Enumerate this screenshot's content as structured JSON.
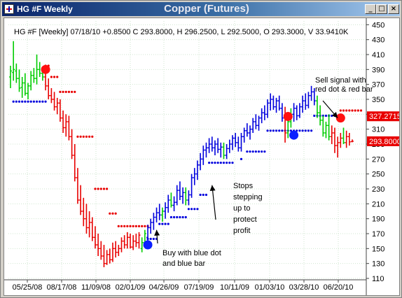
{
  "window": {
    "title": "HG #F Weekly",
    "chart_title": "Copper (Futures)",
    "minimize_label": "_",
    "maximize_label": "□",
    "close_label": "×"
  },
  "info_line": "HG #F [Weekly] 07/18/10 +0.8500 C 293.8000, H 296.2500, L 292.5000, O 293.3000, V 33.9410K",
  "colors": {
    "up": "#00cc00",
    "down": "#e80000",
    "trend_up": "#0000dd",
    "stop_up": "#0000dd",
    "stop_down": "#e80000",
    "price_box": "#e80000"
  },
  "chart_data": {
    "type": "ohlc",
    "title": "Copper (Futures)",
    "y_axis": {
      "side": "right",
      "ylim": [
        110,
        455
      ],
      "ticks": [
        450,
        430,
        410,
        390,
        370,
        350,
        330,
        310,
        290,
        270,
        250,
        230,
        210,
        190,
        170,
        150,
        130,
        110
      ]
    },
    "x_tick_labels": [
      "05/25/08",
      "08/17/08",
      "11/09/08",
      "02/01/09",
      "04/26/09",
      "07/19/09",
      "10/11/09",
      "01/03/10",
      "03/28/10",
      "06/20/10"
    ],
    "price_boxes": [
      {
        "label": "327.2715",
        "value": 327.2715
      },
      {
        "label": "293.8000",
        "value": 293.8
      }
    ],
    "annotations": [
      {
        "text_lines": [
          "Sell signal with",
          "red dot & red bar"
        ],
        "target_x_index": 112,
        "target_value": 325
      },
      {
        "text_lines": [
          "Stops",
          "stepping",
          "up to",
          "protect",
          "profit"
        ],
        "target_x_index": 69,
        "target_value": 235
      },
      {
        "text_lines": [
          "Buy with blue dot",
          "and blue bar"
        ],
        "target_x_index": 50,
        "target_value": 175
      }
    ],
    "signals": [
      {
        "type": "sell",
        "color": "red",
        "x_index": 12,
        "value": 390
      },
      {
        "type": "buy",
        "color": "blue",
        "x_index": 47,
        "value": 155
      },
      {
        "type": "sell",
        "color": "red",
        "x_index": 95,
        "value": 327
      },
      {
        "type": "buy",
        "color": "blue",
        "x_index": 97,
        "value": 302
      },
      {
        "type": "sell",
        "color": "red",
        "x_index": 113,
        "value": 325
      }
    ],
    "stop_segments": [
      {
        "color": "blue",
        "from_index": 1,
        "to_index": 12,
        "value": 347
      },
      {
        "color": "red",
        "from_index": 12,
        "to_index": 13,
        "value": 395
      },
      {
        "color": "red",
        "from_index": 14,
        "to_index": 16,
        "value": 380
      },
      {
        "color": "red",
        "from_index": 17,
        "to_index": 22,
        "value": 360
      },
      {
        "color": "red",
        "from_index": 23,
        "to_index": 28,
        "value": 300
      },
      {
        "color": "red",
        "from_index": 29,
        "to_index": 33,
        "value": 230
      },
      {
        "color": "red",
        "from_index": 34,
        "to_index": 36,
        "value": 197
      },
      {
        "color": "red",
        "from_index": 37,
        "to_index": 47,
        "value": 180
      },
      {
        "color": "blue",
        "from_index": 47,
        "to_index": 50,
        "value": 163
      },
      {
        "color": "blue",
        "from_index": 51,
        "to_index": 54,
        "value": 183
      },
      {
        "color": "blue",
        "from_index": 55,
        "to_index": 60,
        "value": 192
      },
      {
        "color": "blue",
        "from_index": 61,
        "to_index": 64,
        "value": 203
      },
      {
        "color": "blue",
        "from_index": 65,
        "to_index": 67,
        "value": 222
      },
      {
        "color": "blue",
        "from_index": 68,
        "to_index": 76,
        "value": 265
      },
      {
        "color": "blue",
        "from_index": 79,
        "to_index": 79,
        "value": 270
      },
      {
        "color": "blue",
        "from_index": 81,
        "to_index": 87,
        "value": 280
      },
      {
        "color": "blue",
        "from_index": 88,
        "to_index": 95,
        "value": 308
      },
      {
        "color": "blue",
        "from_index": 96,
        "to_index": 103,
        "value": 308
      },
      {
        "color": "blue",
        "from_index": 104,
        "to_index": 112,
        "value": 328
      },
      {
        "color": "red",
        "from_index": 113,
        "to_index": 120,
        "value": 335
      }
    ],
    "bars": [
      {
        "o": 380,
        "h": 395,
        "l": 365,
        "c": 388,
        "color": "green"
      },
      {
        "o": 386,
        "h": 428,
        "l": 375,
        "c": 390,
        "color": "green"
      },
      {
        "o": 388,
        "h": 398,
        "l": 372,
        "c": 378,
        "color": "green"
      },
      {
        "o": 378,
        "h": 390,
        "l": 360,
        "c": 365,
        "color": "green"
      },
      {
        "o": 366,
        "h": 380,
        "l": 352,
        "c": 372,
        "color": "green"
      },
      {
        "o": 372,
        "h": 385,
        "l": 355,
        "c": 358,
        "color": "green"
      },
      {
        "o": 358,
        "h": 372,
        "l": 350,
        "c": 368,
        "color": "green"
      },
      {
        "o": 368,
        "h": 388,
        "l": 362,
        "c": 382,
        "color": "green"
      },
      {
        "o": 382,
        "h": 392,
        "l": 372,
        "c": 378,
        "color": "green"
      },
      {
        "o": 378,
        "h": 410,
        "l": 370,
        "c": 390,
        "color": "green"
      },
      {
        "o": 390,
        "h": 400,
        "l": 380,
        "c": 385,
        "color": "green"
      },
      {
        "o": 385,
        "h": 392,
        "l": 375,
        "c": 380,
        "color": "green"
      },
      {
        "o": 380,
        "h": 385,
        "l": 362,
        "c": 368,
        "color": "red"
      },
      {
        "o": 368,
        "h": 378,
        "l": 350,
        "c": 355,
        "color": "red"
      },
      {
        "o": 355,
        "h": 365,
        "l": 345,
        "c": 350,
        "color": "red"
      },
      {
        "o": 350,
        "h": 360,
        "l": 335,
        "c": 340,
        "color": "red"
      },
      {
        "o": 340,
        "h": 352,
        "l": 330,
        "c": 345,
        "color": "red"
      },
      {
        "o": 345,
        "h": 350,
        "l": 320,
        "c": 325,
        "color": "red"
      },
      {
        "o": 325,
        "h": 335,
        "l": 305,
        "c": 312,
        "color": "red"
      },
      {
        "o": 312,
        "h": 330,
        "l": 300,
        "c": 320,
        "color": "red"
      },
      {
        "o": 320,
        "h": 328,
        "l": 295,
        "c": 300,
        "color": "red"
      },
      {
        "o": 300,
        "h": 310,
        "l": 270,
        "c": 275,
        "color": "red"
      },
      {
        "o": 275,
        "h": 290,
        "l": 240,
        "c": 245,
        "color": "red"
      },
      {
        "o": 245,
        "h": 258,
        "l": 210,
        "c": 215,
        "color": "red"
      },
      {
        "o": 215,
        "h": 235,
        "l": 195,
        "c": 200,
        "color": "red"
      },
      {
        "o": 200,
        "h": 218,
        "l": 180,
        "c": 190,
        "color": "red"
      },
      {
        "o": 190,
        "h": 210,
        "l": 170,
        "c": 178,
        "color": "red"
      },
      {
        "o": 178,
        "h": 200,
        "l": 165,
        "c": 185,
        "color": "red"
      },
      {
        "o": 185,
        "h": 192,
        "l": 160,
        "c": 165,
        "color": "red"
      },
      {
        "o": 165,
        "h": 180,
        "l": 150,
        "c": 155,
        "color": "red"
      },
      {
        "o": 155,
        "h": 170,
        "l": 140,
        "c": 150,
        "color": "red"
      },
      {
        "o": 150,
        "h": 160,
        "l": 135,
        "c": 140,
        "color": "red"
      },
      {
        "o": 140,
        "h": 155,
        "l": 125,
        "c": 130,
        "color": "red"
      },
      {
        "o": 130,
        "h": 148,
        "l": 128,
        "c": 142,
        "color": "red"
      },
      {
        "o": 142,
        "h": 150,
        "l": 130,
        "c": 135,
        "color": "red"
      },
      {
        "o": 135,
        "h": 158,
        "l": 132,
        "c": 150,
        "color": "red"
      },
      {
        "o": 150,
        "h": 160,
        "l": 138,
        "c": 145,
        "color": "red"
      },
      {
        "o": 145,
        "h": 155,
        "l": 140,
        "c": 150,
        "color": "red"
      },
      {
        "o": 150,
        "h": 165,
        "l": 145,
        "c": 160,
        "color": "red"
      },
      {
        "o": 160,
        "h": 168,
        "l": 150,
        "c": 155,
        "color": "red"
      },
      {
        "o": 155,
        "h": 172,
        "l": 150,
        "c": 165,
        "color": "red"
      },
      {
        "o": 165,
        "h": 170,
        "l": 150,
        "c": 152,
        "color": "red"
      },
      {
        "o": 152,
        "h": 168,
        "l": 148,
        "c": 160,
        "color": "red"
      },
      {
        "o": 160,
        "h": 170,
        "l": 152,
        "c": 158,
        "color": "red"
      },
      {
        "o": 158,
        "h": 172,
        "l": 150,
        "c": 168,
        "color": "red"
      },
      {
        "o": 150,
        "h": 165,
        "l": 145,
        "c": 158,
        "color": "green"
      },
      {
        "o": 158,
        "h": 175,
        "l": 152,
        "c": 170,
        "color": "green"
      },
      {
        "o": 165,
        "h": 182,
        "l": 160,
        "c": 178,
        "color": "blue"
      },
      {
        "o": 178,
        "h": 190,
        "l": 170,
        "c": 185,
        "color": "blue"
      },
      {
        "o": 185,
        "h": 198,
        "l": 175,
        "c": 192,
        "color": "blue"
      },
      {
        "o": 192,
        "h": 205,
        "l": 185,
        "c": 198,
        "color": "blue"
      },
      {
        "o": 198,
        "h": 210,
        "l": 188,
        "c": 195,
        "color": "blue"
      },
      {
        "o": 195,
        "h": 205,
        "l": 186,
        "c": 200,
        "color": "green"
      },
      {
        "o": 200,
        "h": 212,
        "l": 190,
        "c": 205,
        "color": "blue"
      },
      {
        "o": 205,
        "h": 222,
        "l": 198,
        "c": 215,
        "color": "blue"
      },
      {
        "o": 215,
        "h": 225,
        "l": 205,
        "c": 208,
        "color": "green"
      },
      {
        "o": 208,
        "h": 220,
        "l": 200,
        "c": 212,
        "color": "blue"
      },
      {
        "o": 212,
        "h": 235,
        "l": 208,
        "c": 228,
        "color": "blue"
      },
      {
        "o": 228,
        "h": 240,
        "l": 215,
        "c": 220,
        "color": "blue"
      },
      {
        "o": 220,
        "h": 232,
        "l": 210,
        "c": 225,
        "color": "blue"
      },
      {
        "o": 225,
        "h": 232,
        "l": 208,
        "c": 215,
        "color": "green"
      },
      {
        "o": 215,
        "h": 228,
        "l": 208,
        "c": 222,
        "color": "blue"
      },
      {
        "o": 222,
        "h": 250,
        "l": 218,
        "c": 245,
        "color": "blue"
      },
      {
        "o": 245,
        "h": 258,
        "l": 235,
        "c": 250,
        "color": "blue"
      },
      {
        "o": 250,
        "h": 268,
        "l": 242,
        "c": 262,
        "color": "blue"
      },
      {
        "o": 262,
        "h": 278,
        "l": 255,
        "c": 270,
        "color": "blue"
      },
      {
        "o": 270,
        "h": 288,
        "l": 262,
        "c": 282,
        "color": "blue"
      },
      {
        "o": 282,
        "h": 292,
        "l": 272,
        "c": 285,
        "color": "blue"
      },
      {
        "o": 285,
        "h": 298,
        "l": 278,
        "c": 290,
        "color": "blue"
      },
      {
        "o": 290,
        "h": 300,
        "l": 280,
        "c": 285,
        "color": "blue"
      },
      {
        "o": 285,
        "h": 295,
        "l": 275,
        "c": 290,
        "color": "blue"
      },
      {
        "o": 290,
        "h": 298,
        "l": 278,
        "c": 283,
        "color": "blue"
      },
      {
        "o": 283,
        "h": 292,
        "l": 272,
        "c": 286,
        "color": "blue"
      },
      {
        "o": 286,
        "h": 292,
        "l": 270,
        "c": 275,
        "color": "green"
      },
      {
        "o": 275,
        "h": 290,
        "l": 270,
        "c": 284,
        "color": "blue"
      },
      {
        "o": 284,
        "h": 296,
        "l": 278,
        "c": 290,
        "color": "blue"
      },
      {
        "o": 290,
        "h": 302,
        "l": 282,
        "c": 298,
        "color": "blue"
      },
      {
        "o": 298,
        "h": 305,
        "l": 286,
        "c": 292,
        "color": "blue"
      },
      {
        "o": 292,
        "h": 300,
        "l": 280,
        "c": 285,
        "color": "blue"
      },
      {
        "o": 285,
        "h": 305,
        "l": 280,
        "c": 300,
        "color": "blue"
      },
      {
        "o": 300,
        "h": 312,
        "l": 292,
        "c": 308,
        "color": "blue"
      },
      {
        "o": 308,
        "h": 318,
        "l": 300,
        "c": 305,
        "color": "blue"
      },
      {
        "o": 305,
        "h": 315,
        "l": 296,
        "c": 310,
        "color": "blue"
      },
      {
        "o": 310,
        "h": 325,
        "l": 305,
        "c": 320,
        "color": "blue"
      },
      {
        "o": 320,
        "h": 330,
        "l": 310,
        "c": 315,
        "color": "blue"
      },
      {
        "o": 315,
        "h": 328,
        "l": 308,
        "c": 325,
        "color": "blue"
      },
      {
        "o": 325,
        "h": 338,
        "l": 318,
        "c": 332,
        "color": "blue"
      },
      {
        "o": 332,
        "h": 342,
        "l": 322,
        "c": 330,
        "color": "blue"
      },
      {
        "o": 330,
        "h": 350,
        "l": 325,
        "c": 345,
        "color": "blue"
      },
      {
        "o": 345,
        "h": 358,
        "l": 335,
        "c": 350,
        "color": "blue"
      },
      {
        "o": 350,
        "h": 355,
        "l": 336,
        "c": 340,
        "color": "blue"
      },
      {
        "o": 340,
        "h": 352,
        "l": 332,
        "c": 348,
        "color": "blue"
      },
      {
        "o": 348,
        "h": 355,
        "l": 335,
        "c": 338,
        "color": "blue"
      },
      {
        "o": 338,
        "h": 345,
        "l": 320,
        "c": 325,
        "color": "blue"
      },
      {
        "o": 325,
        "h": 340,
        "l": 292,
        "c": 305,
        "color": "red"
      },
      {
        "o": 305,
        "h": 328,
        "l": 298,
        "c": 320,
        "color": "green"
      },
      {
        "o": 320,
        "h": 338,
        "l": 312,
        "c": 330,
        "color": "green"
      },
      {
        "o": 330,
        "h": 345,
        "l": 320,
        "c": 338,
        "color": "blue"
      },
      {
        "o": 338,
        "h": 342,
        "l": 322,
        "c": 328,
        "color": "blue"
      },
      {
        "o": 328,
        "h": 345,
        "l": 325,
        "c": 340,
        "color": "blue"
      },
      {
        "o": 340,
        "h": 355,
        "l": 332,
        "c": 348,
        "color": "blue"
      },
      {
        "o": 348,
        "h": 358,
        "l": 336,
        "c": 342,
        "color": "blue"
      },
      {
        "o": 342,
        "h": 360,
        "l": 338,
        "c": 355,
        "color": "blue"
      },
      {
        "o": 355,
        "h": 368,
        "l": 348,
        "c": 360,
        "color": "blue"
      },
      {
        "o": 360,
        "h": 365,
        "l": 342,
        "c": 348,
        "color": "blue"
      },
      {
        "o": 348,
        "h": 355,
        "l": 325,
        "c": 332,
        "color": "green"
      },
      {
        "o": 332,
        "h": 342,
        "l": 315,
        "c": 322,
        "color": "green"
      },
      {
        "o": 322,
        "h": 328,
        "l": 300,
        "c": 305,
        "color": "green"
      },
      {
        "o": 305,
        "h": 320,
        "l": 298,
        "c": 315,
        "color": "green"
      },
      {
        "o": 315,
        "h": 330,
        "l": 295,
        "c": 300,
        "color": "green"
      },
      {
        "o": 300,
        "h": 315,
        "l": 290,
        "c": 305,
        "color": "red"
      },
      {
        "o": 305,
        "h": 312,
        "l": 278,
        "c": 288,
        "color": "red"
      },
      {
        "o": 288,
        "h": 300,
        "l": 272,
        "c": 292,
        "color": "red"
      },
      {
        "o": 292,
        "h": 305,
        "l": 285,
        "c": 298,
        "color": "red"
      },
      {
        "o": 298,
        "h": 312,
        "l": 290,
        "c": 292,
        "color": "green"
      },
      {
        "o": 292,
        "h": 308,
        "l": 285,
        "c": 300,
        "color": "red"
      },
      {
        "o": 300,
        "h": 305,
        "l": 288,
        "c": 293,
        "color": "red"
      },
      {
        "o": 293.3,
        "h": 296.25,
        "l": 292.5,
        "c": 293.8,
        "color": "red"
      }
    ]
  }
}
